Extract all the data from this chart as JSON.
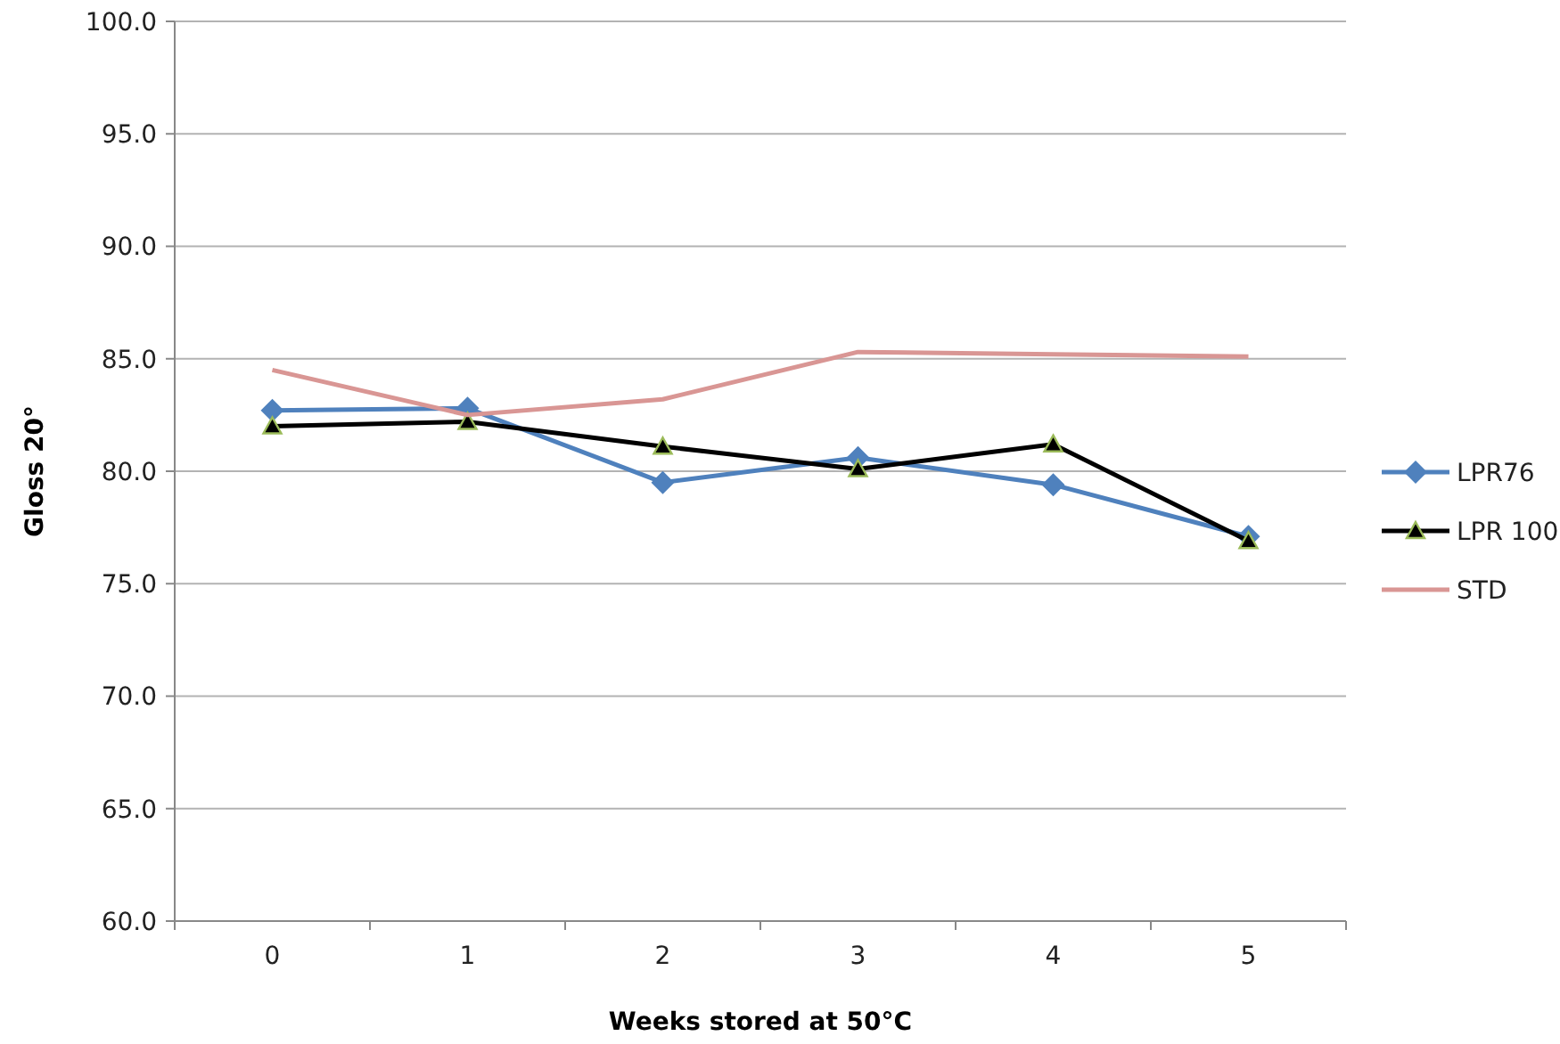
{
  "chart_data": {
    "type": "line",
    "xlabel": "Weeks stored at 50°C",
    "ylabel": "Gloss 20°",
    "categories": [
      "0",
      "1",
      "2",
      "3",
      "4",
      "5"
    ],
    "series": [
      {
        "name": "LPR76",
        "color": "#4f81bd",
        "marker": "diamond",
        "values": [
          82.7,
          82.8,
          79.5,
          80.6,
          79.4,
          77.1
        ]
      },
      {
        "name": "LPR 100",
        "color": "#000000",
        "marker": "triangle",
        "values": [
          82.0,
          82.2,
          81.1,
          80.1,
          81.2,
          76.9
        ]
      },
      {
        "name": "STD",
        "color": "#d99694",
        "marker": "none",
        "values": [
          84.5,
          82.5,
          83.2,
          85.3,
          85.2,
          85.1
        ]
      }
    ],
    "ylim": [
      60,
      100
    ],
    "yticks": [
      {
        "value": 60,
        "label": "60.0"
      },
      {
        "value": 65,
        "label": "65.0"
      },
      {
        "value": 70,
        "label": "70.0"
      },
      {
        "value": 75,
        "label": "75.0"
      },
      {
        "value": 80,
        "label": "80.0"
      },
      {
        "value": 85,
        "label": "85.0"
      },
      {
        "value": 90,
        "label": "90.0"
      },
      {
        "value": 95,
        "label": "95.0"
      },
      {
        "value": 100,
        "label": "100.0"
      }
    ],
    "grid": "y",
    "legend": "right"
  }
}
